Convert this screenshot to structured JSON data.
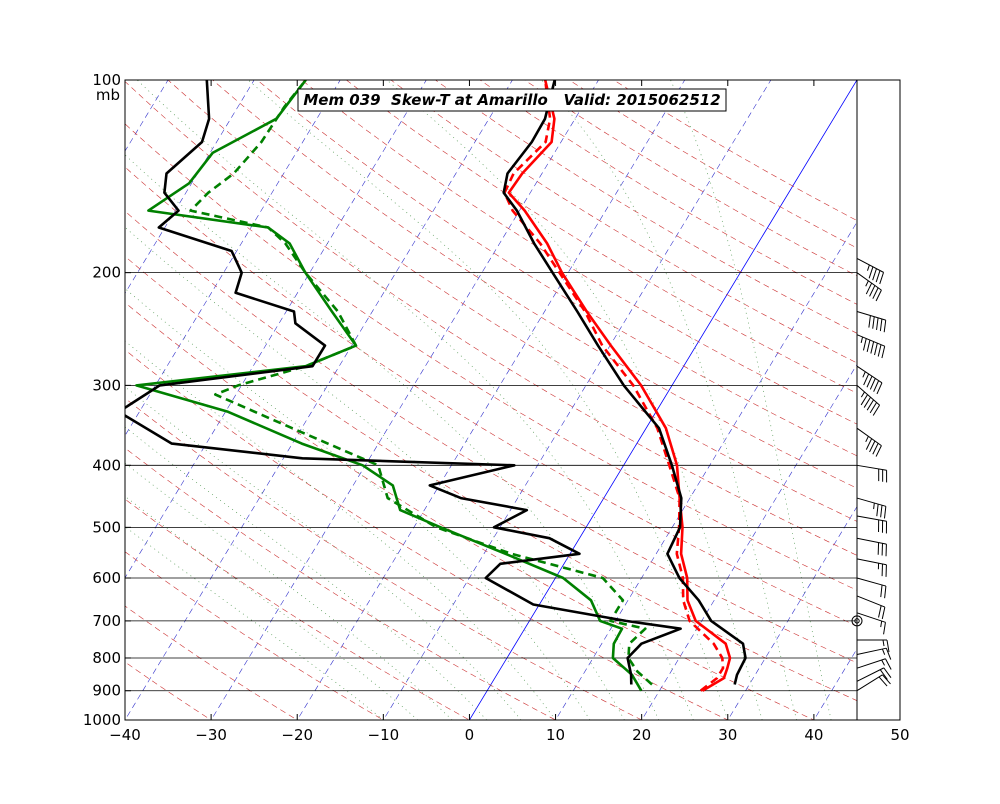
{
  "chart_data": {
    "type": "line",
    "title": "Mem 039  Skew-T at Amarillo   Valid: 2015062512",
    "pressure_unit_label": "mb",
    "xlim": [
      -40,
      50
    ],
    "pressure_range": [
      1000,
      100
    ],
    "x_ticks": [
      "−40",
      "−30",
      "−20",
      "−10",
      "0",
      "10",
      "20",
      "30",
      "40",
      "50"
    ],
    "p_ticks": [
      100,
      200,
      300,
      400,
      500,
      600,
      700,
      800,
      900,
      1000
    ],
    "p_labels": [
      "100",
      "200",
      "300",
      "400",
      "500",
      "600",
      "700",
      "800",
      "900",
      "1000"
    ],
    "skew": 45,
    "colors": {
      "temperature": "#ff0000",
      "dewpoint": "#008000",
      "ensemble_mean": "#000000",
      "dry_adiabat": "#cc3333",
      "moist_adiabat": "#559955",
      "isotherm": "#3333cc",
      "zero_isotherm": "#0000ff"
    },
    "series": [
      {
        "id": "temperature",
        "style": "solid",
        "points": [
          [
            900,
            25.0
          ],
          [
            860,
            26.6
          ],
          [
            830,
            26.3
          ],
          [
            800,
            25.9
          ],
          [
            760,
            24.4
          ],
          [
            700,
            19.3
          ],
          [
            650,
            16.9
          ],
          [
            600,
            15.3
          ],
          [
            550,
            12.9
          ],
          [
            500,
            11.2
          ],
          [
            450,
            8.8
          ],
          [
            400,
            6.2
          ],
          [
            350,
            2.3
          ],
          [
            300,
            -3.6
          ],
          [
            260,
            -9.9
          ],
          [
            230,
            -15.1
          ],
          [
            200,
            -20.7
          ],
          [
            180,
            -24.5
          ],
          [
            160,
            -29.4
          ],
          [
            150,
            -32.5
          ],
          [
            140,
            -32.3
          ],
          [
            125,
            -31.1
          ],
          [
            115,
            -32.4
          ],
          [
            100,
            -36.2
          ]
        ]
      },
      {
        "id": "temperature_dashed",
        "style": "dashed",
        "points": [
          [
            900,
            24.8
          ],
          [
            860,
            25.8
          ],
          [
            830,
            25.8
          ],
          [
            800,
            25.0
          ],
          [
            760,
            23.0
          ],
          [
            700,
            18.6
          ],
          [
            650,
            16.4
          ],
          [
            600,
            14.8
          ],
          [
            550,
            12.4
          ],
          [
            500,
            10.8
          ],
          [
            450,
            8.8
          ],
          [
            400,
            5.3
          ],
          [
            350,
            1.3
          ],
          [
            300,
            -4.5
          ],
          [
            260,
            -10.9
          ],
          [
            230,
            -15.3
          ],
          [
            200,
            -21.0
          ],
          [
            180,
            -25.3
          ],
          [
            160,
            -30.8
          ],
          [
            150,
            -33.0
          ],
          [
            140,
            -33.3
          ],
          [
            125,
            -31.8
          ],
          [
            115,
            -32.9
          ],
          [
            100,
            -36.2
          ]
        ]
      },
      {
        "id": "dewpoint",
        "style": "solid",
        "points": [
          [
            900,
            17.9
          ],
          [
            850,
            15.7
          ],
          [
            800,
            12.3
          ],
          [
            760,
            11.4
          ],
          [
            720,
            11.3
          ],
          [
            700,
            8.2
          ],
          [
            650,
            5.7
          ],
          [
            600,
            0.9
          ],
          [
            550,
            -7.5
          ],
          [
            500,
            -16.9
          ],
          [
            470,
            -22.8
          ],
          [
            430,
            -25.4
          ],
          [
            400,
            -30.3
          ],
          [
            370,
            -38.9
          ],
          [
            330,
            -49.7
          ],
          [
            300,
            -62.2
          ],
          [
            280,
            -43.9
          ],
          [
            260,
            -39.5
          ],
          [
            230,
            -44.7
          ],
          [
            200,
            -50.5
          ],
          [
            180,
            -54.4
          ],
          [
            170,
            -58.0
          ],
          [
            160,
            -73.1
          ],
          [
            145,
            -70.3
          ],
          [
            130,
            -69.7
          ],
          [
            115,
            -64.7
          ],
          [
            100,
            -64.0
          ]
        ]
      },
      {
        "id": "dewpoint_dashed",
        "style": "dashed",
        "points": [
          [
            880,
            18.7
          ],
          [
            840,
            16.1
          ],
          [
            800,
            14.1
          ],
          [
            760,
            13.2
          ],
          [
            720,
            14.0
          ],
          [
            700,
            9.4
          ],
          [
            650,
            9.4
          ],
          [
            600,
            5.5
          ],
          [
            550,
            -6.8
          ],
          [
            500,
            -17.4
          ],
          [
            450,
            -25.1
          ],
          [
            400,
            -28.5
          ],
          [
            350,
            -41.1
          ],
          [
            310,
            -52.4
          ],
          [
            300,
            -50.4
          ],
          [
            280,
            -43.9
          ],
          [
            260,
            -39.5
          ],
          [
            230,
            -44.0
          ],
          [
            200,
            -50.5
          ],
          [
            180,
            -54.9
          ],
          [
            170,
            -58.0
          ],
          [
            160,
            -68.2
          ],
          [
            150,
            -67.4
          ],
          [
            140,
            -65.8
          ],
          [
            125,
            -64.8
          ],
          [
            110,
            -64.6
          ],
          [
            100,
            -64.0
          ]
        ]
      },
      {
        "id": "ensemble_mean_temperature",
        "style": "solid",
        "points": [
          [
            880,
            28.3
          ],
          [
            850,
            27.9
          ],
          [
            800,
            27.7
          ],
          [
            760,
            26.4
          ],
          [
            700,
            21.1
          ],
          [
            650,
            18.2
          ],
          [
            600,
            14.4
          ],
          [
            550,
            11.3
          ],
          [
            500,
            10.9
          ],
          [
            450,
            9.0
          ],
          [
            400,
            5.6
          ],
          [
            350,
            1.5
          ],
          [
            300,
            -5.6
          ],
          [
            260,
            -11.4
          ],
          [
            230,
            -16.2
          ],
          [
            200,
            -21.8
          ],
          [
            180,
            -26.0
          ],
          [
            160,
            -30.3
          ],
          [
            150,
            -33.1
          ],
          [
            140,
            -34.0
          ],
          [
            125,
            -33.4
          ],
          [
            115,
            -33.5
          ],
          [
            100,
            -35.1
          ]
        ]
      },
      {
        "id": "ensemble_mean_dewpoint",
        "style": "solid",
        "points": [
          [
            880,
            16.3
          ],
          [
            850,
            15.6
          ],
          [
            800,
            14.0
          ],
          [
            760,
            14.6
          ],
          [
            720,
            18.1
          ],
          [
            700,
            11.2
          ],
          [
            660,
            -0.7
          ],
          [
            600,
            -8.1
          ],
          [
            570,
            -7.4
          ],
          [
            550,
            1.1
          ],
          [
            520,
            -3.5
          ],
          [
            500,
            -10.7
          ],
          [
            470,
            -8.1
          ],
          [
            450,
            -16.6
          ],
          [
            430,
            -21.1
          ],
          [
            400,
            -12.7
          ],
          [
            390,
            -37.8
          ],
          [
            370,
            -54.0
          ],
          [
            330,
            -62.4
          ],
          [
            300,
            -59.5
          ],
          [
            280,
            -43.1
          ],
          [
            260,
            -43.1
          ],
          [
            240,
            -48.1
          ],
          [
            230,
            -49.1
          ],
          [
            215,
            -57.2
          ],
          [
            200,
            -57.9
          ],
          [
            185,
            -60.6
          ],
          [
            170,
            -70.7
          ],
          [
            160,
            -69.6
          ],
          [
            150,
            -72.5
          ],
          [
            140,
            -73.6
          ],
          [
            125,
            -71.7
          ],
          [
            115,
            -72.5
          ],
          [
            100,
            -75.5
          ]
        ]
      }
    ],
    "wind_barbs": [
      {
        "p": 900,
        "u": -16,
        "v": -10
      },
      {
        "p": 870,
        "u": -16,
        "v": -8
      },
      {
        "p": 830,
        "u": -15,
        "v": -5
      },
      {
        "p": 790,
        "u": -14,
        "v": -3
      },
      {
        "p": 750,
        "u": -13,
        "v": 0
      },
      {
        "p": 700,
        "calm": true
      },
      {
        "p": 680,
        "u": -15,
        "v": 5
      },
      {
        "p": 640,
        "u": -20,
        "v": 8
      },
      {
        "p": 600,
        "u": -18,
        "v": 5
      },
      {
        "p": 560,
        "u": -25,
        "v": 5
      },
      {
        "p": 520,
        "u": -30,
        "v": 6
      },
      {
        "p": 480,
        "u": -28,
        "v": 5
      },
      {
        "p": 450,
        "u": -35,
        "v": 10
      },
      {
        "p": 400,
        "u": -30,
        "v": 5
      },
      {
        "p": 350,
        "u": -35,
        "v": 25
      },
      {
        "p": 300,
        "u": -40,
        "v": 35
      },
      {
        "p": 280,
        "u": -45,
        "v": 30
      },
      {
        "p": 250,
        "u": -60,
        "v": 25
      },
      {
        "p": 230,
        "u": -50,
        "v": 15
      },
      {
        "p": 200,
        "u": -35,
        "v": 25
      },
      {
        "p": 190,
        "u": -38,
        "v": 20
      }
    ]
  }
}
